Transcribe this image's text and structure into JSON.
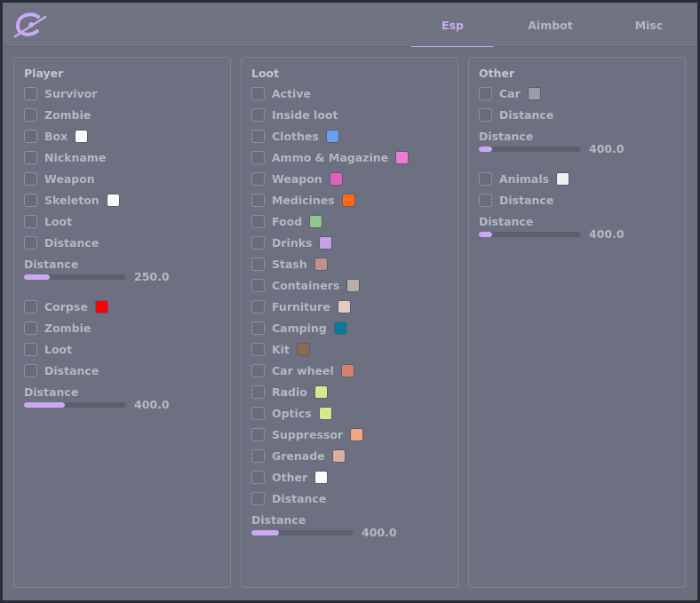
{
  "active_tab": 0,
  "tabs": [
    "Esp",
    "Aimbot",
    "Misc"
  ],
  "panels": [
    {
      "title": "Player",
      "items": [
        {
          "label": "Survivor"
        },
        {
          "label": "Zombie"
        },
        {
          "label": "Box",
          "color": "#ffffff"
        },
        {
          "label": "Nickname"
        },
        {
          "label": "Weapon"
        },
        {
          "label": "Skeleton",
          "color": "#ffffff"
        },
        {
          "label": "Loot"
        },
        {
          "label": "Distance"
        },
        {
          "label": "Distance",
          "value": 250,
          "value_label": "250.0",
          "max": 1000
        },
        {
          "label": "Corpse",
          "color": "#ff0000"
        },
        {
          "label": "Zombie"
        },
        {
          "label": "Loot"
        },
        {
          "label": "Distance"
        },
        {
          "label": "Distance",
          "value": 400,
          "value_label": "400.0",
          "max": 1000
        }
      ]
    },
    {
      "title": "Loot",
      "items": [
        {
          "label": "Active"
        },
        {
          "label": "Inside loot"
        },
        {
          "label": "Clothes",
          "color": "#6a9ff0"
        },
        {
          "label": "Ammo & Magazine",
          "color": "#f07ad8"
        },
        {
          "label": "Weapon",
          "color": "#e060c0"
        },
        {
          "label": "Medicines",
          "color": "#ff6a10"
        },
        {
          "label": "Food",
          "color": "#8ec88a"
        },
        {
          "label": "Drinks",
          "color": "#c8a0e8"
        },
        {
          "label": "Stash",
          "color": "#c09090"
        },
        {
          "label": "Containers",
          "color": "#b8b0a8"
        },
        {
          "label": "Furniture",
          "color": "#e0ccc0"
        },
        {
          "label": "Camping",
          "color": "#0a7a9a"
        },
        {
          "label": "Kit",
          "color": "#8a6a50"
        },
        {
          "label": "Car wheel",
          "color": "#d88070"
        },
        {
          "label": "Radio",
          "color": "#d8e890"
        },
        {
          "label": "Optics",
          "color": "#d8e890"
        },
        {
          "label": "Suppressor",
          "color": "#f0a880"
        },
        {
          "label": "Grenade",
          "color": "#d8b0a0"
        },
        {
          "label": "Other",
          "color": "#ffffff"
        },
        {
          "label": "Distance"
        },
        {
          "label": "Distance",
          "value": 400,
          "value_label": "400.0",
          "max": 1500
        }
      ]
    },
    {
      "title": "Other",
      "items": [
        {
          "label": "Car",
          "color": "#9a9ca8"
        },
        {
          "label": "Distance"
        },
        {
          "label": "Distance",
          "value": 400,
          "value_label": "400.0",
          "max": 3000
        },
        {
          "label": "Animals",
          "color": "#f0f0f0"
        },
        {
          "label": "Distance"
        },
        {
          "label": "Distance",
          "value": 400,
          "value_label": "400.0",
          "max": 3000
        }
      ]
    }
  ]
}
